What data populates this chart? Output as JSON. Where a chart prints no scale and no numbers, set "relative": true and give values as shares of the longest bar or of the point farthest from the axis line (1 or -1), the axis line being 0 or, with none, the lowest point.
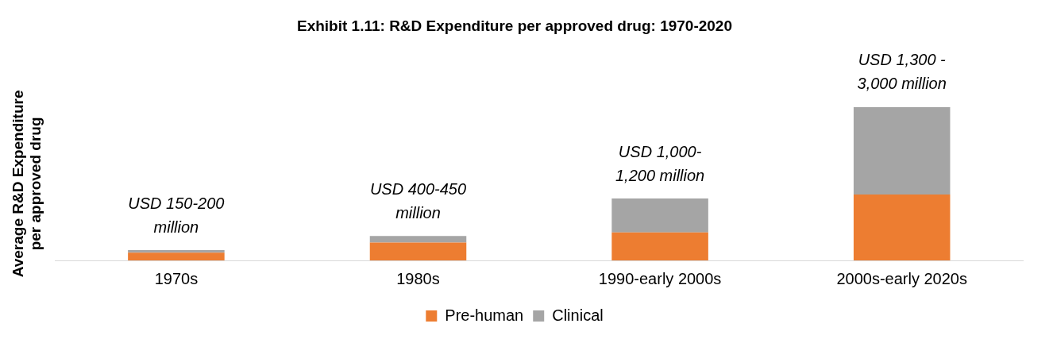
{
  "chart_data": {
    "type": "bar",
    "title": "Exhibit 1.11: R&D Expenditure per approved drug: 1970-2020",
    "ylabel": "Average R&D Expenditure per approved drug",
    "categories": [
      "1970s",
      "1980s",
      "1990-early 2000s",
      "2000s-early 2020s"
    ],
    "stacked": true,
    "relative": true,
    "series": [
      {
        "name": "Pre-human",
        "color": "#ed7d31",
        "values": [
          0.05,
          0.117,
          0.183,
          0.429
        ]
      },
      {
        "name": "Clinical",
        "color": "#a5a5a5",
        "values": [
          0.017,
          0.042,
          0.221,
          0.571
        ]
      }
    ],
    "annotations": [
      "USD 150-200 million",
      "USD 400-450 million",
      "USD 1,000-1,200 million",
      "USD 1,300 - 3,000 million"
    ],
    "grid": false,
    "legend": "bottom"
  }
}
